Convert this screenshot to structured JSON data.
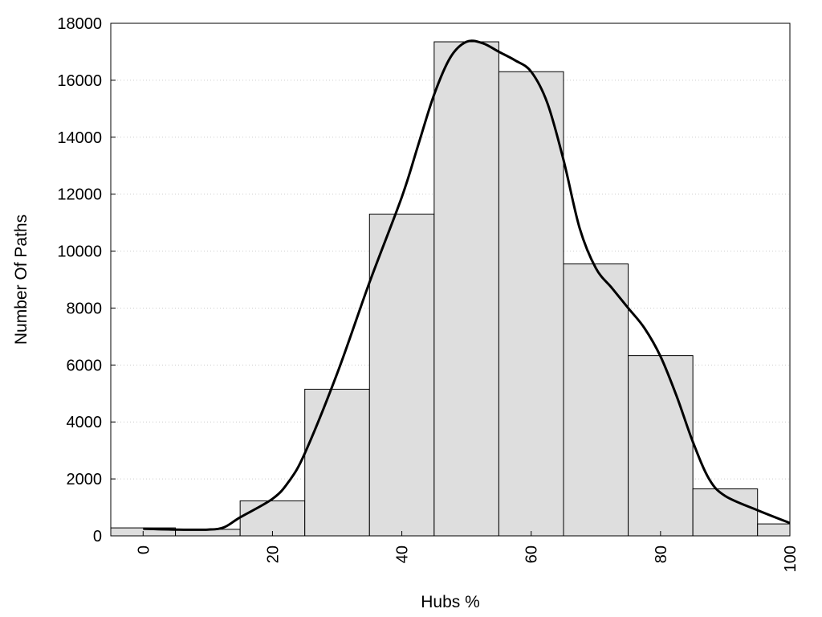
{
  "chart_data": {
    "type": "bar",
    "xlabel": "Hubs %",
    "ylabel": "Number Of Paths",
    "xlim": [
      -5,
      100
    ],
    "ylim": [
      0,
      18000
    ],
    "x_ticks": [
      0,
      20,
      40,
      60,
      80,
      100
    ],
    "y_ticks": [
      0,
      2000,
      4000,
      6000,
      8000,
      10000,
      12000,
      14000,
      16000,
      18000
    ],
    "grid": "horizontal-dotted",
    "bins": [
      {
        "x0": -5,
        "x1": 5,
        "value": 280
      },
      {
        "x0": 5,
        "x1": 15,
        "value": 230
      },
      {
        "x0": 15,
        "x1": 25,
        "value": 1230
      },
      {
        "x0": 25,
        "x1": 35,
        "value": 5150
      },
      {
        "x0": 35,
        "x1": 45,
        "value": 11300
      },
      {
        "x0": 45,
        "x1": 55,
        "value": 17350
      },
      {
        "x0": 55,
        "x1": 65,
        "value": 16300
      },
      {
        "x0": 65,
        "x1": 75,
        "value": 9550
      },
      {
        "x0": 75,
        "x1": 85,
        "value": 6330
      },
      {
        "x0": 85,
        "x1": 95,
        "value": 1650
      },
      {
        "x0": 95,
        "x1": 105,
        "value": 420
      }
    ],
    "curve": {
      "type": "line",
      "x": [
        0,
        5,
        10,
        12.5,
        15,
        20,
        22.5,
        25,
        30,
        35,
        40,
        42.5,
        45,
        47.5,
        50,
        52.5,
        55,
        57.5,
        60,
        62.5,
        65,
        67.5,
        70,
        72.5,
        75,
        77.5,
        80,
        82.5,
        85,
        87.5,
        90,
        95,
        100
      ],
      "y": [
        250,
        220,
        220,
        300,
        650,
        1300,
        1900,
        2900,
        5700,
        8900,
        11900,
        13700,
        15500,
        16800,
        17350,
        17300,
        17000,
        16700,
        16300,
        15200,
        13200,
        10800,
        9400,
        8700,
        8000,
        7300,
        6300,
        4900,
        3300,
        2000,
        1400,
        900,
        450
      ]
    },
    "colors": {
      "bar_fill": "#dedede",
      "bar_stroke": "#000000",
      "curve": "#000000",
      "grid": "#cccccc"
    }
  }
}
